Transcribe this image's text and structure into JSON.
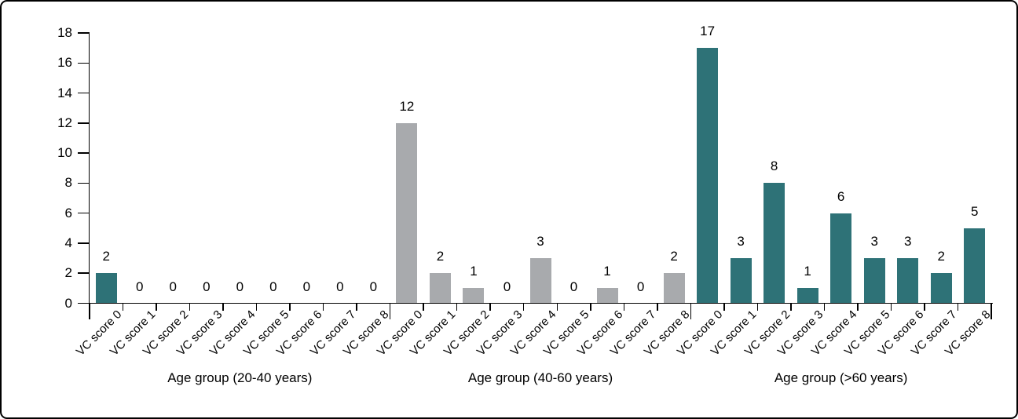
{
  "chart": {
    "background": "#ffffff",
    "border_color": "#000000",
    "axis_color": "#000000",
    "text_color": "#000000"
  },
  "chart_data": {
    "type": "bar",
    "title": "",
    "xlabel": "",
    "ylabel": "",
    "ylim": [
      0,
      18
    ],
    "yticks": [
      0,
      2,
      4,
      6,
      8,
      10,
      12,
      14,
      16,
      18
    ],
    "grid": false,
    "legend": "none",
    "bar_value_labels": true,
    "categories": [
      "VC score 0",
      "VC score 1",
      "VC score 2",
      "VC score 3",
      "VC score 4",
      "VC score 5",
      "VC score 6",
      "VC score 7",
      "VC score 8"
    ],
    "groups": [
      {
        "label": "Age group (20-40 years)",
        "color": "#2e7277",
        "values": [
          2,
          0,
          0,
          0,
          0,
          0,
          0,
          0,
          0
        ]
      },
      {
        "label": "Age group (40-60 years)",
        "color": "#a8aaad",
        "values": [
          12,
          2,
          1,
          0,
          3,
          0,
          1,
          0,
          2
        ]
      },
      {
        "label": "Age group (>60 years)",
        "color": "#2e7277",
        "values": [
          17,
          3,
          8,
          1,
          6,
          3,
          3,
          2,
          5
        ]
      }
    ]
  }
}
